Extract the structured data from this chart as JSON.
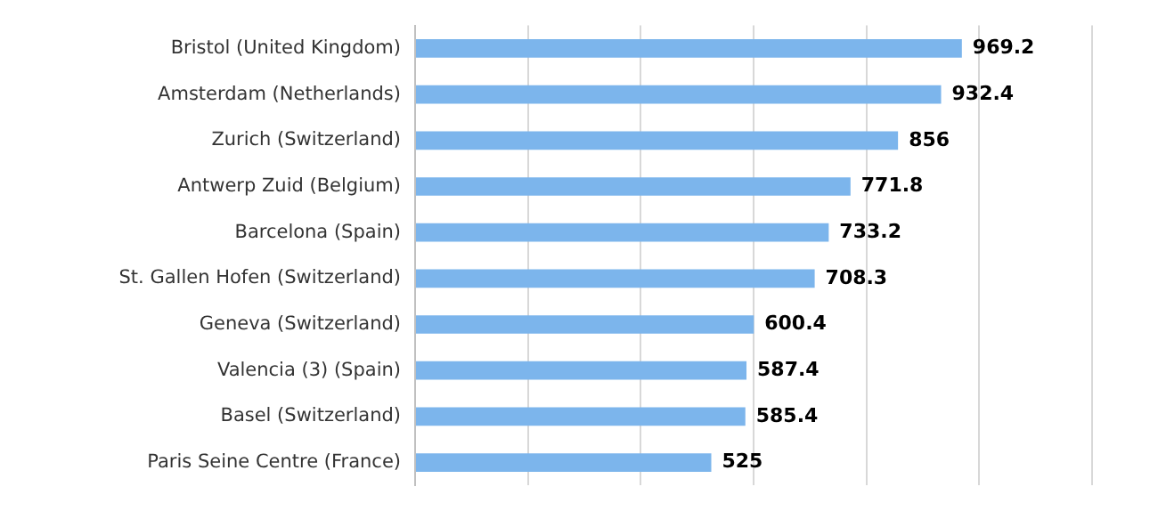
{
  "chart_data": {
    "type": "bar",
    "orientation": "horizontal",
    "categories": [
      "Bristol (United Kingdom)",
      "Amsterdam (Netherlands)",
      "Zurich (Switzerland)",
      "Antwerp Zuid (Belgium)",
      "Barcelona (Spain)",
      "St. Gallen Hofen (Switzerland)",
      "Geneva (Switzerland)",
      "Valencia (3) (Spain)",
      "Basel (Switzerland)",
      "Paris Seine Centre (France)"
    ],
    "values": [
      969.2,
      932.4,
      856,
      771.8,
      733.2,
      708.3,
      600.4,
      587.4,
      585.4,
      525
    ],
    "color": "#7cb5ec",
    "data_labels": true,
    "grid": "x",
    "tick_labels": "y",
    "xlim": [
      0,
      1200
    ],
    "xticks": [
      {
        "value": 0,
        "label": null
      },
      {
        "value": 200,
        "label": null
      },
      {
        "value": 400,
        "label": null
      },
      {
        "value": 600,
        "label": null
      },
      {
        "value": 800,
        "label": null
      },
      {
        "value": 1000,
        "label": null
      },
      {
        "value": 1200,
        "label": null
      }
    ]
  }
}
